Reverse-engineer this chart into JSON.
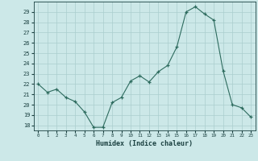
{
  "x": [
    0,
    1,
    2,
    3,
    4,
    5,
    6,
    7,
    8,
    9,
    10,
    11,
    12,
    13,
    14,
    15,
    16,
    17,
    18,
    19,
    20,
    21,
    22,
    23
  ],
  "y": [
    22.0,
    21.2,
    21.5,
    20.7,
    20.3,
    19.3,
    17.8,
    17.8,
    20.2,
    20.7,
    22.3,
    22.8,
    22.2,
    23.2,
    23.8,
    25.6,
    29.0,
    29.5,
    28.8,
    28.2,
    23.3,
    20.0,
    19.7,
    18.8
  ],
  "xlabel": "Humidex (Indice chaleur)",
  "ylim": [
    17.5,
    30.0
  ],
  "xlim": [
    -0.5,
    23.5
  ],
  "yticks": [
    18,
    19,
    20,
    21,
    22,
    23,
    24,
    25,
    26,
    27,
    28,
    29
  ],
  "xticks": [
    0,
    1,
    2,
    3,
    4,
    5,
    6,
    7,
    8,
    9,
    10,
    11,
    12,
    13,
    14,
    15,
    16,
    17,
    18,
    19,
    20,
    21,
    22,
    23
  ],
  "line_color": "#2d6b5e",
  "bg_color": "#cce8e8",
  "grid_color": "#aacece",
  "text_color": "#1a4040"
}
